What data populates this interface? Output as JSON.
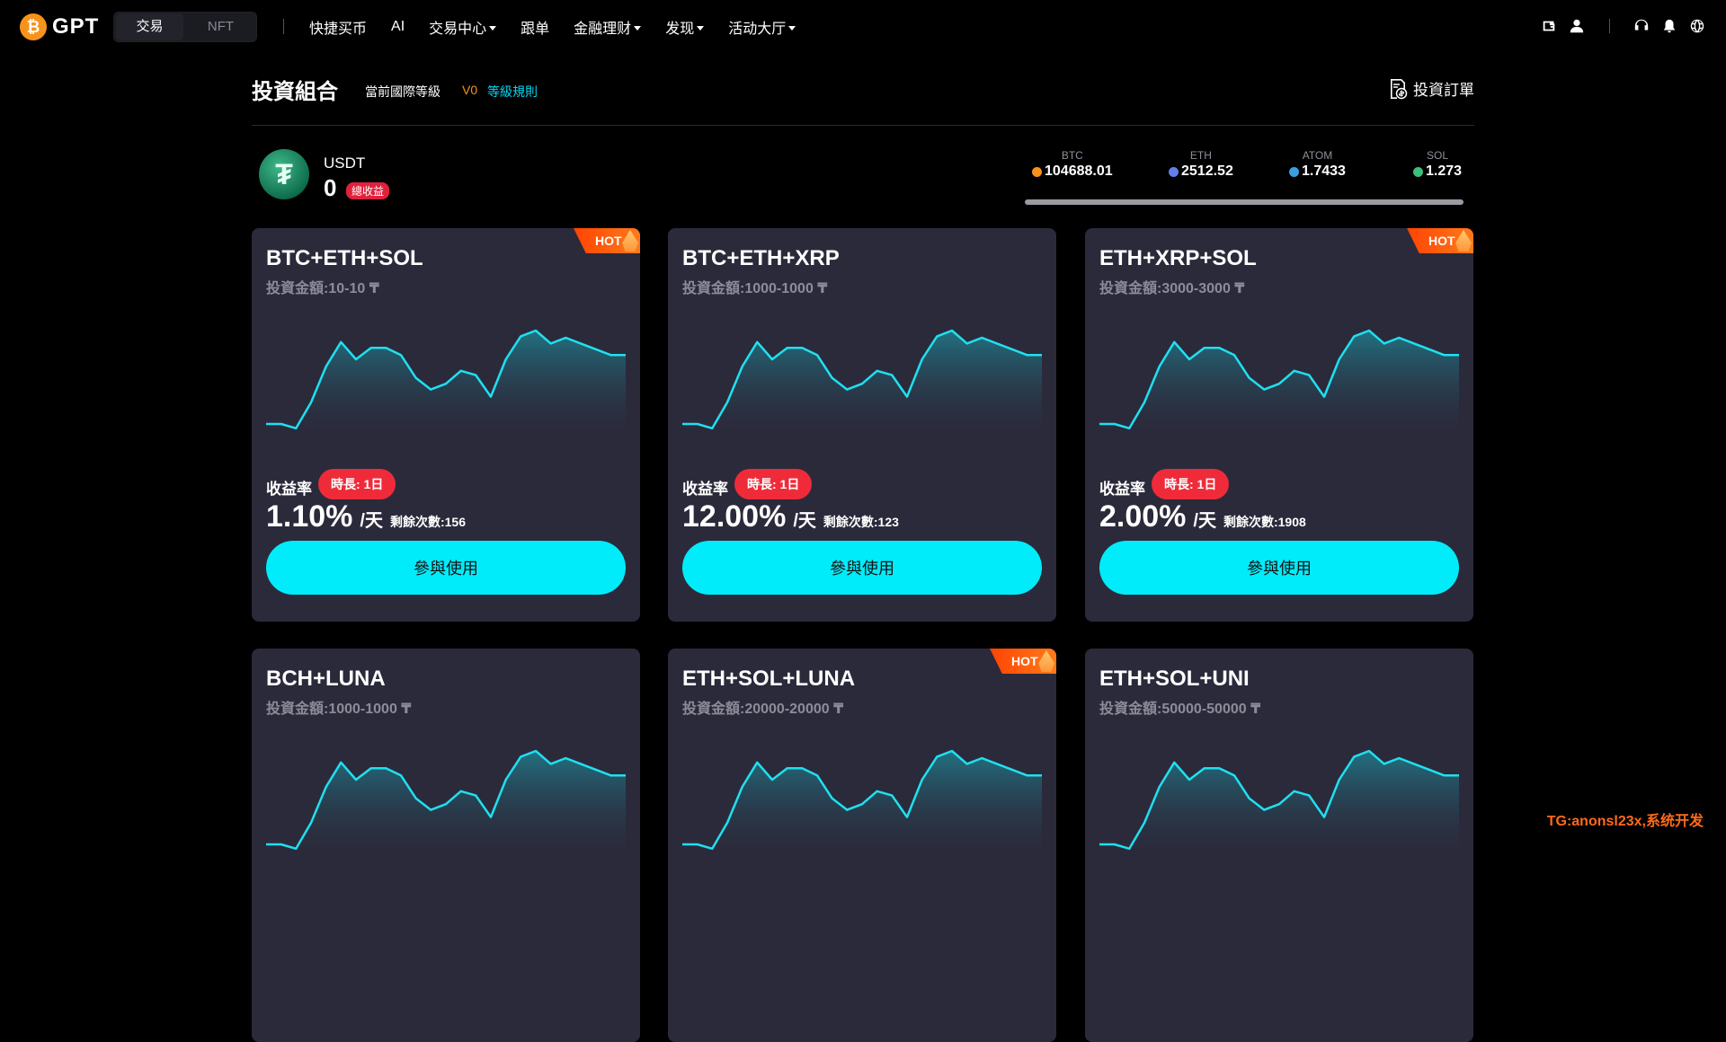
{
  "nav": {
    "logo_text": "GPT",
    "logo_glyph": "₿",
    "seg_trade": "交易",
    "seg_nft": "NFT",
    "links": [
      {
        "label": "快捷买币",
        "dropdown": false
      },
      {
        "label": "AI",
        "dropdown": false
      },
      {
        "label": "交易中心",
        "dropdown": true
      },
      {
        "label": "跟单",
        "dropdown": false
      },
      {
        "label": "金融理财",
        "dropdown": true
      },
      {
        "label": "发现",
        "dropdown": true
      },
      {
        "label": "活动大厅",
        "dropdown": true
      }
    ],
    "icons": [
      "wallet-icon",
      "user-icon",
      "headset-icon",
      "bell-icon",
      "globe-icon"
    ]
  },
  "header": {
    "title": "投資組合",
    "level_label": "當前國際等級",
    "level_value": "V0",
    "level_rules": "等級規則",
    "orders_label": "投資訂單"
  },
  "summary": {
    "coin": "USDT",
    "coin_glyph": "₮",
    "amount": "0",
    "badge": "總收益"
  },
  "ticker": [
    {
      "sym": "BTC",
      "price": "104688.01",
      "color": "#f7931a"
    },
    {
      "sym": "ETH",
      "price": "2512.52",
      "color": "#627eea"
    },
    {
      "sym": "ATOM",
      "price": "1.7433",
      "color": "#3aa0e0"
    },
    {
      "sym": "SOL",
      "price": "1.273",
      "color": "#3cbf7a"
    }
  ],
  "cards": [
    {
      "title": "BTC+ETH+SOL",
      "amount": "投資金額:10-10 ₸",
      "hot": "HOT",
      "yield_label": "收益率",
      "duration": "時長: 1日",
      "yield": "1.10%",
      "unit": "/天",
      "remain": "剩餘次數:156",
      "button": "參與使用"
    },
    {
      "title": "BTC+ETH+XRP",
      "amount": "投資金額:1000-1000 ₸",
      "hot": "",
      "yield_label": "收益率",
      "duration": "時長: 1日",
      "yield": "12.00%",
      "unit": "/天",
      "remain": "剩餘次數:123",
      "button": "參與使用"
    },
    {
      "title": "ETH+XRP+SOL",
      "amount": "投資金額:3000-3000 ₸",
      "hot": "HOT",
      "yield_label": "收益率",
      "duration": "時長: 1日",
      "yield": "2.00%",
      "unit": "/天",
      "remain": "剩餘次數:1908",
      "button": "參與使用"
    },
    {
      "title": "BCH+LUNA",
      "amount": "投資金額:1000-1000 ₸",
      "hot": "",
      "yield_label": "",
      "duration": "",
      "yield": "",
      "unit": "",
      "remain": "",
      "button": ""
    },
    {
      "title": "ETH+SOL+LUNA",
      "amount": "投資金額:20000-20000 ₸",
      "hot": "HOT",
      "yield_label": "",
      "duration": "",
      "yield": "",
      "unit": "",
      "remain": "",
      "button": ""
    },
    {
      "title": "ETH+SOL+UNI",
      "amount": "投資金額:50000-50000 ₸",
      "hot": "",
      "yield_label": "",
      "duration": "",
      "yield": "",
      "unit": "",
      "remain": "",
      "button": ""
    }
  ],
  "sparkline": [
    0.95,
    0.95,
    0.98,
    0.8,
    0.55,
    0.38,
    0.5,
    0.42,
    0.42,
    0.47,
    0.63,
    0.71,
    0.67,
    0.58,
    0.61,
    0.76,
    0.5,
    0.34,
    0.3,
    0.39,
    0.35,
    0.39,
    0.43,
    0.47,
    0.47
  ],
  "watermark": "TG:anonsl23x,系统开发"
}
